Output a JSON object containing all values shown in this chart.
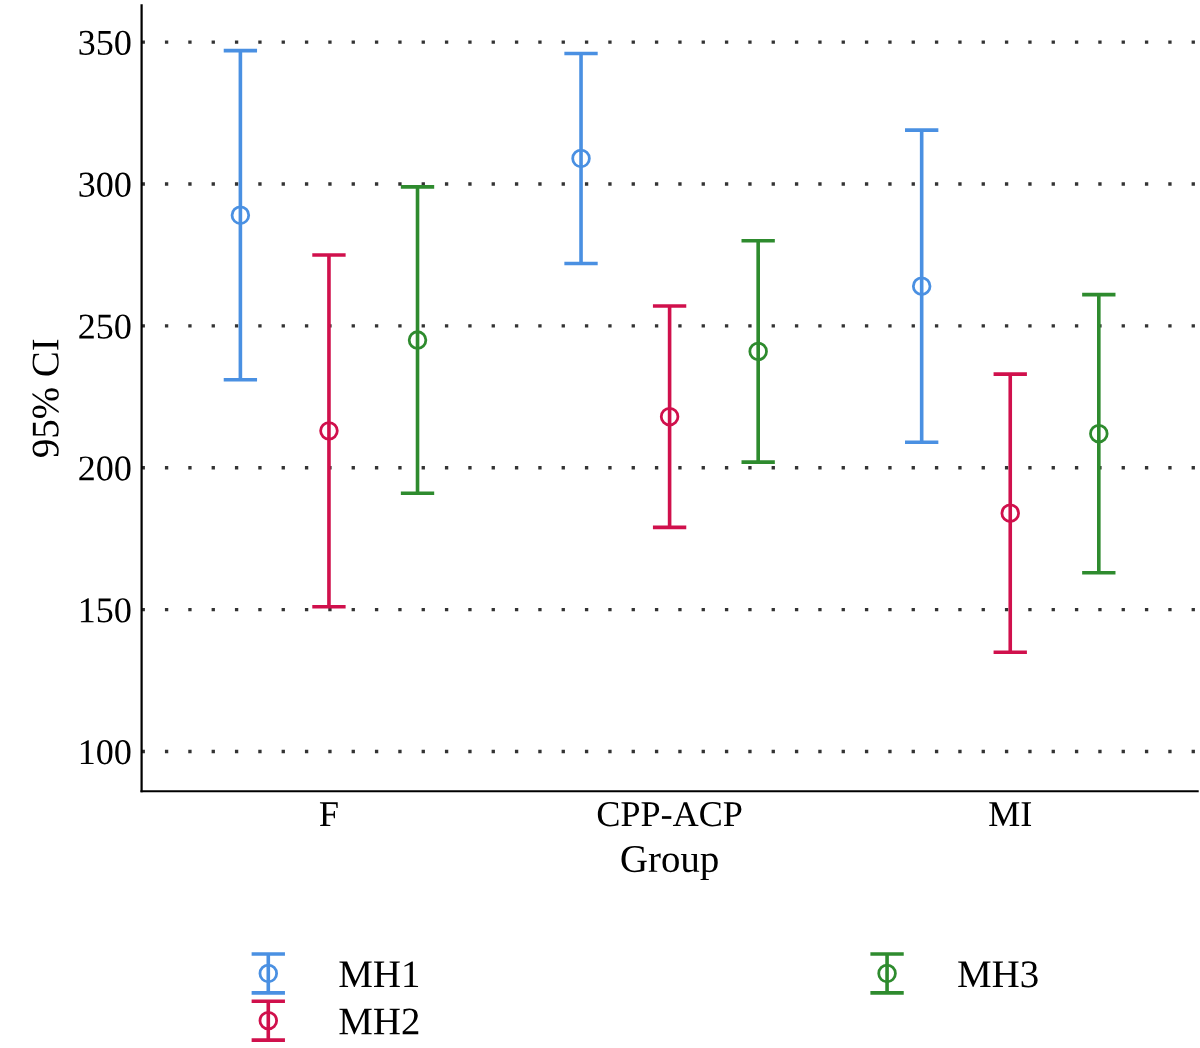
{
  "chart_data": {
    "type": "scatter",
    "xlabel": "Group",
    "ylabel": "95% CI",
    "categories": [
      "F",
      "CPP-ACP",
      "MI"
    ],
    "series": [
      {
        "name": "MH1",
        "color": "#4a90e2",
        "values": [
          289,
          309,
          264
        ],
        "errors": [
          58,
          37,
          55
        ]
      },
      {
        "name": "MH2",
        "color": "#d0104c",
        "values": [
          213,
          218,
          184
        ],
        "errors": [
          62,
          39,
          49
        ]
      },
      {
        "name": "MH3",
        "color": "#2e8b2e",
        "values": [
          245,
          241,
          212
        ],
        "errors": [
          54,
          39,
          49
        ]
      }
    ],
    "ylim": [
      86,
      363
    ],
    "yticks": [
      100,
      150,
      200,
      250,
      300,
      350
    ],
    "grid": "y",
    "legend": "bottom",
    "marker": "circle"
  }
}
